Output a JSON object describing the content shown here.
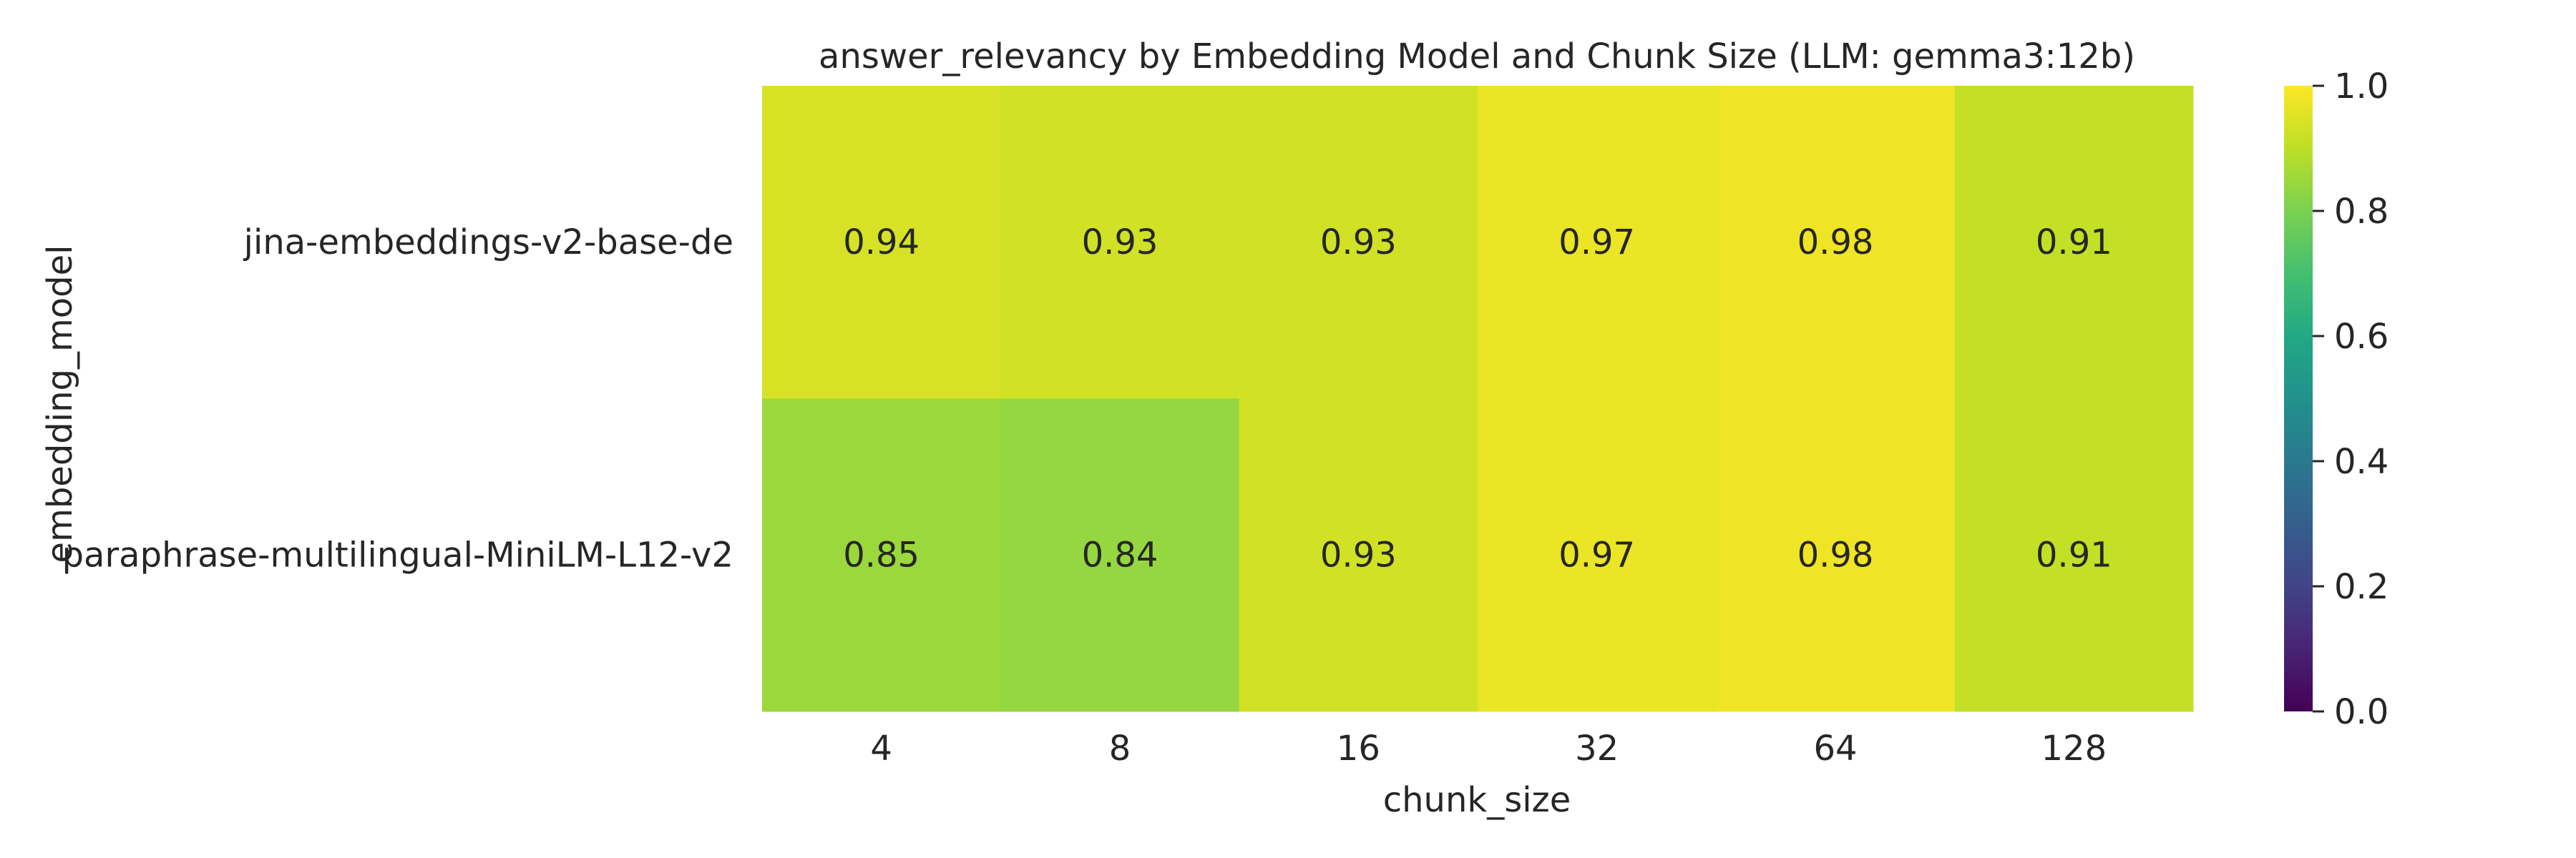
{
  "chart_data": {
    "type": "heatmap",
    "title": "answer_relevancy by Embedding Model and Chunk Size (LLM: gemma3:12b)",
    "xlabel": "chunk_size",
    "ylabel": "embedding_model",
    "x_categories": [
      "4",
      "8",
      "16",
      "32",
      "64",
      "128"
    ],
    "y_categories": [
      "jina-embeddings-v2-base-de",
      "paraphrase-multilingual-MiniLM-L12-v2"
    ],
    "values": [
      [
        0.94,
        0.93,
        0.93,
        0.97,
        0.98,
        0.91
      ],
      [
        0.85,
        0.84,
        0.93,
        0.97,
        0.98,
        0.91
      ]
    ],
    "colormap": "viridis",
    "vmin": 0.0,
    "vmax": 1.0,
    "colorbar_ticks": [
      "0.0",
      "0.2",
      "0.4",
      "0.6",
      "0.8",
      "1.0"
    ],
    "grid": false,
    "colorbar_position": "right"
  }
}
